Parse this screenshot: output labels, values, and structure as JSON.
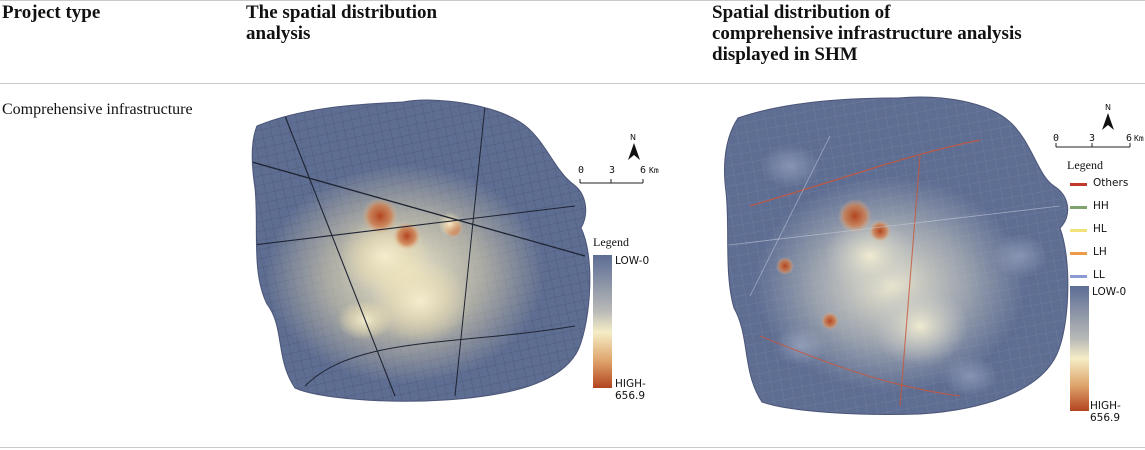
{
  "table": {
    "headers": {
      "project_type": "Project type",
      "spatial_analysis": [
        "The spatial distribution",
        "analysis"
      ],
      "shm_analysis": [
        "Spatial distribution of",
        "comprehensive infrastructure analysis",
        "displayed in SHM"
      ]
    },
    "row_label": "Comprehensive infrastructure"
  },
  "map_left": {
    "scale": {
      "ticks": [
        "0",
        "3",
        "6"
      ],
      "unit": "Km"
    },
    "north_label": "N",
    "legend_title": "Legend",
    "ramp_low": "LOW-0",
    "ramp_high": "HIGH-656.9"
  },
  "map_right": {
    "scale": {
      "ticks": [
        "0",
        "3",
        "6"
      ],
      "unit": "Km"
    },
    "north_label": "N",
    "legend_title": "Legend",
    "classes": [
      {
        "label": "Others",
        "color": "#c0392b"
      },
      {
        "label": "HH",
        "color": "#7fa36a"
      },
      {
        "label": "HL",
        "color": "#f2e27a"
      },
      {
        "label": "LH",
        "color": "#ec9a4a"
      },
      {
        "label": "LL",
        "color": "#8e9bd2"
      }
    ],
    "ramp_low": "LOW-0",
    "ramp_high": "HIGH-656.9"
  },
  "colors": {
    "background": "#5e6d92",
    "hot": "#c0582e",
    "warm": "#f4ecc8",
    "roads": "#1f2433",
    "rule": "#c9c9c9"
  }
}
